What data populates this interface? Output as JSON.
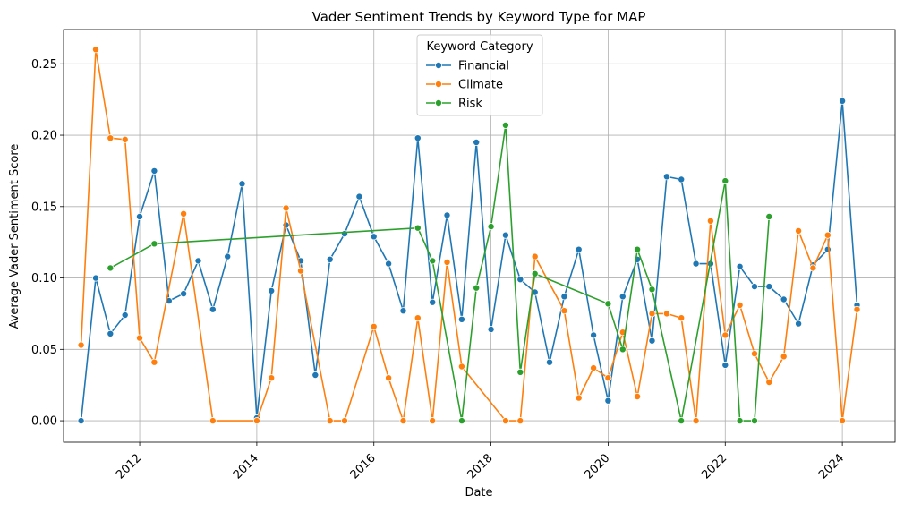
{
  "chart_data": {
    "type": "line",
    "title": "Vader Sentiment Trends by Keyword Type for MAP",
    "xlabel": "Date",
    "ylabel": "Average Vader Sentiment Score",
    "xlim": [
      2010.7,
      2024.9
    ],
    "ylim": [
      -0.015,
      0.274
    ],
    "x_ticks": [
      2012,
      2014,
      2016,
      2018,
      2020,
      2022,
      2024
    ],
    "x_tick_labels": [
      "2012",
      "2014",
      "2016",
      "2018",
      "2020",
      "2022",
      "2024"
    ],
    "y_ticks": [
      0.0,
      0.05,
      0.1,
      0.15,
      0.2,
      0.25
    ],
    "y_tick_labels": [
      "0.00",
      "0.05",
      "0.10",
      "0.15",
      "0.20",
      "0.25"
    ],
    "grid": true,
    "legend": {
      "title": "Keyword Category",
      "position": "top-center"
    },
    "series": [
      {
        "name": "Financial",
        "color": "#1f77b4",
        "points": [
          [
            2011.0,
            0.0
          ],
          [
            2011.25,
            0.1
          ],
          [
            2011.5,
            0.061
          ],
          [
            2011.75,
            0.074
          ],
          [
            2012.0,
            0.143
          ],
          [
            2012.25,
            0.175
          ],
          [
            2012.5,
            0.084
          ],
          [
            2012.75,
            0.089
          ],
          [
            2013.0,
            0.112
          ],
          [
            2013.25,
            0.078
          ],
          [
            2013.5,
            0.115
          ],
          [
            2013.75,
            0.166
          ],
          [
            2014.0,
            0.002
          ],
          [
            2014.25,
            0.091
          ],
          [
            2014.5,
            0.137
          ],
          [
            2014.75,
            0.112
          ],
          [
            2015.0,
            0.032
          ],
          [
            2015.25,
            0.113
          ],
          [
            2015.5,
            0.131
          ],
          [
            2015.75,
            0.157
          ],
          [
            2016.0,
            0.129
          ],
          [
            2016.25,
            0.11
          ],
          [
            2016.5,
            0.077
          ],
          [
            2016.75,
            0.198
          ],
          [
            2017.0,
            0.083
          ],
          [
            2017.25,
            0.144
          ],
          [
            2017.5,
            0.071
          ],
          [
            2017.75,
            0.195
          ],
          [
            2018.0,
            0.064
          ],
          [
            2018.25,
            0.13
          ],
          [
            2018.5,
            0.099
          ],
          [
            2018.75,
            0.09
          ],
          [
            2019.0,
            0.041
          ],
          [
            2019.25,
            0.087
          ],
          [
            2019.5,
            0.12
          ],
          [
            2019.75,
            0.06
          ],
          [
            2020.0,
            0.014
          ],
          [
            2020.25,
            0.087
          ],
          [
            2020.5,
            0.113
          ],
          [
            2020.75,
            0.056
          ],
          [
            2021.0,
            0.171
          ],
          [
            2021.25,
            0.169
          ],
          [
            2021.5,
            0.11
          ],
          [
            2021.75,
            0.11
          ],
          [
            2022.0,
            0.039
          ],
          [
            2022.25,
            0.108
          ],
          [
            2022.5,
            0.094
          ],
          [
            2022.75,
            0.094
          ],
          [
            2023.0,
            0.085
          ],
          [
            2023.25,
            0.068
          ],
          [
            2023.5,
            0.109
          ],
          [
            2023.75,
            0.12
          ],
          [
            2024.0,
            0.224
          ],
          [
            2024.25,
            0.081
          ]
        ]
      },
      {
        "name": "Climate",
        "color": "#ff7f0e",
        "points": [
          [
            2011.0,
            0.053
          ],
          [
            2011.25,
            0.26
          ],
          [
            2011.5,
            0.198
          ],
          [
            2011.75,
            0.197
          ],
          [
            2012.0,
            0.058
          ],
          [
            2012.25,
            0.041
          ],
          [
            2012.75,
            0.145
          ],
          [
            2013.25,
            0.0
          ],
          [
            2014.0,
            0.0
          ],
          [
            2014.25,
            0.03
          ],
          [
            2014.5,
            0.149
          ],
          [
            2014.75,
            0.105
          ],
          [
            2015.25,
            0.0
          ],
          [
            2015.5,
            0.0
          ],
          [
            2016.0,
            0.066
          ],
          [
            2016.25,
            0.03
          ],
          [
            2016.5,
            0.0
          ],
          [
            2016.75,
            0.072
          ],
          [
            2017.0,
            0.0
          ],
          [
            2017.25,
            0.111
          ],
          [
            2017.5,
            0.038
          ],
          [
            2018.25,
            0.0
          ],
          [
            2018.5,
            0.0
          ],
          [
            2018.75,
            0.115
          ],
          [
            2019.25,
            0.077
          ],
          [
            2019.5,
            0.016
          ],
          [
            2019.75,
            0.037
          ],
          [
            2020.0,
            0.03
          ],
          [
            2020.25,
            0.062
          ],
          [
            2020.5,
            0.017
          ],
          [
            2020.75,
            0.075
          ],
          [
            2021.0,
            0.075
          ],
          [
            2021.25,
            0.072
          ],
          [
            2021.5,
            0.0
          ],
          [
            2021.75,
            0.14
          ],
          [
            2022.0,
            0.06
          ],
          [
            2022.25,
            0.081
          ],
          [
            2022.5,
            0.047
          ],
          [
            2022.75,
            0.027
          ],
          [
            2023.0,
            0.045
          ],
          [
            2023.25,
            0.133
          ],
          [
            2023.5,
            0.107
          ],
          [
            2023.75,
            0.13
          ],
          [
            2024.0,
            0.0
          ],
          [
            2024.25,
            0.078
          ]
        ]
      },
      {
        "name": "Risk",
        "color": "#2ca02c",
        "points": [
          [
            2011.5,
            0.107
          ],
          [
            2012.25,
            0.124
          ],
          [
            2016.75,
            0.135
          ],
          [
            2017.0,
            0.112
          ],
          [
            2017.5,
            0.0
          ],
          [
            2017.75,
            0.093
          ],
          [
            2018.0,
            0.136
          ],
          [
            2018.25,
            0.207
          ],
          [
            2018.5,
            0.034
          ],
          [
            2018.75,
            0.103
          ],
          [
            2020.0,
            0.082
          ],
          [
            2020.25,
            0.05
          ],
          [
            2020.5,
            0.12
          ],
          [
            2020.75,
            0.092
          ],
          [
            2021.25,
            0.0
          ],
          [
            2022.0,
            0.168
          ],
          [
            2022.25,
            0.0
          ],
          [
            2022.5,
            0.0
          ],
          [
            2022.75,
            0.143
          ]
        ]
      }
    ]
  }
}
